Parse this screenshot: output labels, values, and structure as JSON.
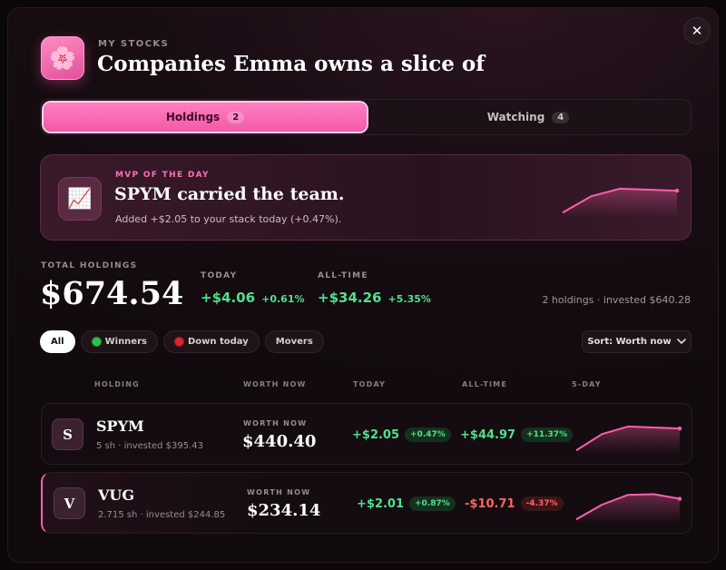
{
  "header": {
    "icon": "cherry-blossom-icon",
    "icon_glyph": "🌸",
    "eyebrow": "MY STOCKS",
    "title": "Companies Emma owns a slice of",
    "close_glyph": "✕"
  },
  "tabs": [
    {
      "label": "Holdings",
      "count": "2",
      "active": true
    },
    {
      "label": "Watching",
      "count": "4",
      "active": false
    }
  ],
  "mvp": {
    "icon_glyph": "📈",
    "eyebrow": "MVP OF THE DAY",
    "headline": "SPYM carried the team.",
    "sub": "Added +$2.05 to your stack today (+0.47%).",
    "sparkline": [
      0.05,
      0.55,
      0.78,
      0.75,
      0.72
    ]
  },
  "totals": {
    "label": "TOTAL HOLDINGS",
    "value": "$674.54",
    "today_label": "TODAY",
    "today_amount": "+$4.06",
    "today_pct": "+0.61%",
    "alltime_label": "ALL-TIME",
    "alltime_amount": "+$34.26",
    "alltime_pct": "+5.35%",
    "summary": "2 holdings · invested $640.28"
  },
  "filters": [
    {
      "label": "All",
      "active": true,
      "dot": ""
    },
    {
      "label": "Winners",
      "active": false,
      "dot": "green"
    },
    {
      "label": "Down today",
      "active": false,
      "dot": "red"
    },
    {
      "label": "Movers",
      "active": false,
      "dot": ""
    }
  ],
  "sort": {
    "label": "Sort: Worth now",
    "chevron": "⌄"
  },
  "columns": {
    "holding": "HOLDING",
    "worth": "WORTH NOW",
    "today": "TODAY",
    "alltime": "ALL-TIME",
    "fiveday": "5-DAY"
  },
  "holdings": [
    {
      "initial": "S",
      "ticker": "SPYM",
      "sub": "5 sh · invested $395.43",
      "worth_label": "WORTH NOW",
      "worth": "$440.40",
      "today_amount": "+$2.05",
      "today_pct": "+0.47%",
      "alltime_amount": "+$44.97",
      "alltime_pct": "+11.37%",
      "sparkline": [
        0.05,
        0.55,
        0.78,
        0.75,
        0.72
      ]
    },
    {
      "initial": "V",
      "ticker": "VUG",
      "sub": "2.715 sh · invested $244.85",
      "worth_label": "WORTH NOW",
      "worth": "$234.14",
      "today_amount": "+$2.01",
      "today_pct": "+0.87%",
      "alltime_amount": "-$10.71",
      "alltime_pct": "-4.37%",
      "sparkline": [
        0.05,
        0.5,
        0.8,
        0.82,
        0.68
      ]
    }
  ],
  "colors": {
    "accent": "#ff7fc2",
    "positive": "#4fe08a",
    "negative": "#ff6363",
    "spark": "#ff5fae"
  }
}
